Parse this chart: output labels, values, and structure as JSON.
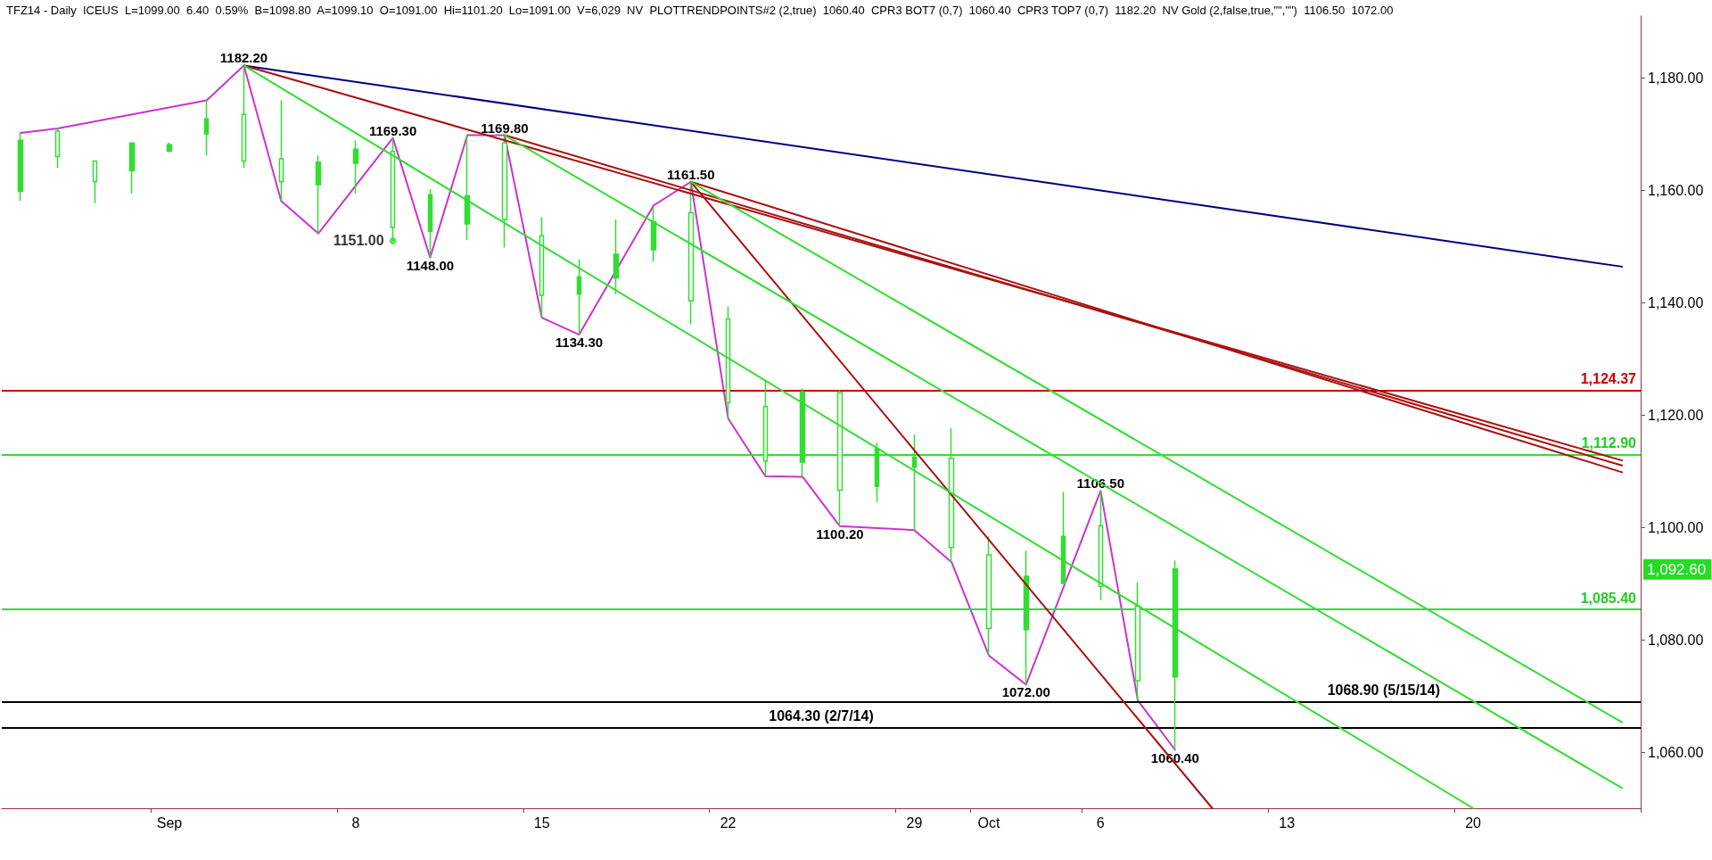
{
  "chart_data": {
    "type": "candlestick",
    "title": "TFZ14 - Daily  ICEUS  L=1099.00  6.40  0.59%  B=1098.80  A=1099.10  O=1091.00  Hi=1101.20  Lo=1091.00  V=6,029  NV  PLOTTRENDPOINTS#2 (2,true)  1060.40  CPR3 BOT7 (0,7)  1060.40  CPR3 TOP7 (0,7)  1182.20  NV Gold (2,false,true,\"\",\"\")  1106.50  1072.00",
    "categories": [
      null,
      null,
      null,
      null,
      "Sep",
      null,
      null,
      null,
      null,
      "8",
      null,
      null,
      null,
      null,
      "15",
      null,
      null,
      null,
      null,
      "22",
      null,
      null,
      null,
      null,
      "29",
      null,
      "Oct",
      null,
      null,
      "6",
      null,
      null,
      null,
      null,
      "13",
      null,
      null,
      null,
      null,
      "20",
      null,
      null,
      null,
      null
    ],
    "color": "#33dd33",
    "ohlc": [
      [
        1159.8,
        1170.2,
        1158.1,
        1168.9
      ],
      [
        1170.5,
        1171.0,
        1164.0,
        1166.0
      ],
      [
        1165.2,
        1165.2,
        1157.7,
        1161.5
      ],
      [
        1163.5,
        1168.5,
        1159.4,
        1168.4
      ],
      [
        1167.0,
        1168.5,
        1166.7,
        1168.1
      ],
      [
        1170.0,
        1176.0,
        1166.2,
        1172.7
      ],
      [
        1173.5,
        1182.2,
        1164.0,
        1165.2
      ],
      [
        1165.6,
        1176.0,
        1158.1,
        1161.5
      ],
      [
        1161.0,
        1166.2,
        1152.3,
        1165.0
      ],
      [
        1164.8,
        1168.9,
        1159.4,
        1167.3
      ],
      [
        1166.9,
        1169.3,
        1151.0,
        1153.4
      ],
      [
        1152.7,
        1160.2,
        1148.0,
        1159.2
      ],
      [
        1154.0,
        1169.8,
        1151.1,
        1159.0
      ],
      [
        1168.4,
        1169.8,
        1149.8,
        1154.8
      ],
      [
        1151.9,
        1155.2,
        1137.3,
        1141.3
      ],
      [
        1141.5,
        1147.7,
        1134.3,
        1144.6
      ],
      [
        1144.4,
        1154.8,
        1141.5,
        1148.6
      ],
      [
        1149.4,
        1156.9,
        1147.3,
        1154.4
      ],
      [
        1156.0,
        1161.5,
        1136.1,
        1140.3
      ],
      [
        1137.1,
        1139.3,
        1119.4,
        1122.2
      ],
      [
        1121.5,
        1126.1,
        1109.1,
        1111.8
      ],
      [
        1111.6,
        1124.7,
        1109.0,
        1124.1
      ],
      [
        1124.0,
        1124.4,
        1100.2,
        1106.6
      ],
      [
        1107.3,
        1115.1,
        1104.5,
        1114.0
      ],
      [
        1110.7,
        1116.5,
        1099.5,
        1112.5
      ],
      [
        1112.3,
        1117.6,
        1093.8,
        1096.4
      ],
      [
        1095.1,
        1098.4,
        1077.2,
        1082.0
      ],
      [
        1081.8,
        1095.8,
        1072.0,
        1091.3
      ],
      [
        1090.0,
        1106.3,
        1090.0,
        1098.4
      ],
      [
        1100.3,
        1106.5,
        1087.0,
        1089.5
      ],
      [
        1086.0,
        1090.2,
        1069.2,
        1072.7
      ],
      [
        1073.4,
        1094.1,
        1060.4,
        1092.6
      ],
      null,
      null,
      null,
      null,
      null,
      null,
      null,
      null,
      null,
      null,
      null,
      null
    ],
    "series": [
      {
        "type": "line",
        "color": "#cc33cc",
        "values": [
          1170.2,
          1171.0,
          null,
          null,
          null,
          1176.0,
          1182.2,
          1158.1,
          1152.3,
          null,
          1169.3,
          1148.0,
          1169.8,
          1169.8,
          1137.3,
          1134.3,
          null,
          1157.3,
          1161.5,
          1119.4,
          1109.1,
          1109.0,
          1100.2,
          null,
          1099.5,
          1093.8,
          1077.2,
          1072.0,
          null,
          1106.5,
          1069.2,
          1060.4,
          null,
          null,
          null,
          null,
          null,
          null,
          null,
          null,
          null,
          null,
          null,
          null
        ],
        "value_labels": [
          null,
          null,
          null,
          null,
          null,
          null,
          "1182.20",
          null,
          null,
          null,
          "1169.30",
          "1148.00",
          null,
          "1169.80",
          null,
          "1134.30",
          null,
          null,
          "1161.50",
          null,
          null,
          null,
          "1100.20",
          null,
          null,
          null,
          null,
          "1072.00",
          null,
          "1106.50",
          null,
          "1060.40",
          null,
          null,
          null,
          null,
          null,
          null,
          null,
          null,
          null,
          null,
          null,
          null
        ]
      },
      {
        "type": "scatter",
        "color": "#33dd33",
        "marker": "circle",
        "values": [
          null,
          null,
          null,
          null,
          null,
          null,
          null,
          null,
          null,
          null,
          1151.0,
          null,
          null,
          null,
          null,
          null,
          null,
          null,
          null,
          null,
          null,
          null,
          null,
          null,
          null,
          null,
          null,
          null,
          null,
          null,
          null,
          null,
          null,
          null,
          null,
          null,
          null,
          null,
          null,
          null,
          null,
          null,
          null,
          null
        ],
        "value_labels": [
          null,
          null,
          null,
          null,
          null,
          null,
          null,
          null,
          null,
          null,
          "1151.00",
          null,
          null,
          null,
          null,
          null,
          null,
          null,
          null,
          null,
          null,
          null,
          null,
          null,
          null,
          null,
          null,
          null,
          null,
          null,
          null,
          null,
          null,
          null,
          null,
          null,
          null,
          null,
          null,
          null,
          null,
          null,
          null,
          null
        ]
      },
      {
        "type": "line",
        "color": "#000080",
        "values": [
          null,
          null,
          null,
          null,
          null,
          null,
          1182.2,
          null,
          null,
          null,
          null,
          null,
          null,
          null,
          null,
          null,
          null,
          null,
          null,
          null,
          null,
          null,
          null,
          null,
          null,
          null,
          null,
          null,
          null,
          null,
          null,
          null,
          null,
          null,
          null,
          null,
          null,
          null,
          null,
          null,
          null,
          null,
          null,
          1146.4
        ]
      },
      {
        "type": "line",
        "color": "#aa1111",
        "values": [
          null,
          null,
          null,
          null,
          null,
          null,
          1182.2,
          null,
          null,
          null,
          null,
          null,
          null,
          null,
          null,
          null,
          null,
          null,
          null,
          null,
          null,
          null,
          null,
          null,
          null,
          null,
          null,
          null,
          null,
          null,
          null,
          null,
          null,
          null,
          null,
          null,
          null,
          null,
          null,
          null,
          null,
          null,
          null,
          1111.9
        ]
      },
      {
        "type": "line",
        "color": "#aa1111",
        "values": [
          null,
          null,
          null,
          null,
          null,
          null,
          null,
          null,
          null,
          null,
          null,
          null,
          null,
          1169.8,
          null,
          null,
          null,
          null,
          null,
          null,
          null,
          null,
          null,
          null,
          null,
          null,
          null,
          null,
          null,
          null,
          null,
          null,
          null,
          null,
          null,
          null,
          null,
          null,
          null,
          null,
          null,
          null,
          null,
          1111.0
        ]
      },
      {
        "type": "line",
        "color": "#aa1111",
        "values": [
          null,
          null,
          null,
          null,
          null,
          null,
          null,
          null,
          null,
          null,
          null,
          null,
          null,
          null,
          null,
          null,
          null,
          null,
          1161.5,
          null,
          null,
          null,
          null,
          null,
          null,
          null,
          null,
          null,
          null,
          null,
          null,
          null,
          null,
          null,
          null,
          null,
          null,
          null,
          null,
          null,
          null,
          null,
          null,
          1109.8
        ]
      },
      {
        "type": "line",
        "color": "#aa1111",
        "values": [
          null,
          null,
          null,
          null,
          null,
          null,
          null,
          null,
          null,
          null,
          null,
          null,
          null,
          null,
          null,
          null,
          null,
          null,
          1161.5,
          null,
          null,
          null,
          null,
          null,
          null,
          null,
          null,
          null,
          null,
          null,
          null,
          null,
          1050,
          null,
          null,
          null,
          null,
          null,
          null,
          null,
          null,
          null,
          null,
          null
        ]
      },
      {
        "type": "line",
        "color": "#33dd33",
        "values": [
          null,
          null,
          null,
          null,
          null,
          null,
          1182.2,
          null,
          null,
          null,
          null,
          null,
          null,
          null,
          null,
          null,
          null,
          null,
          null,
          null,
          null,
          null,
          null,
          null,
          null,
          null,
          null,
          null,
          null,
          null,
          null,
          null,
          null,
          null,
          null,
          null,
          null,
          null,
          null,
          1050,
          null,
          null,
          null,
          null
        ]
      },
      {
        "type": "line",
        "color": "#33dd33",
        "values": [
          null,
          null,
          null,
          null,
          null,
          null,
          null,
          null,
          null,
          null,
          null,
          null,
          null,
          1169.8,
          null,
          null,
          null,
          null,
          null,
          null,
          null,
          null,
          null,
          null,
          null,
          null,
          null,
          null,
          null,
          null,
          null,
          null,
          null,
          null,
          null,
          null,
          null,
          null,
          null,
          null,
          null,
          null,
          null,
          1053.6
        ]
      },
      {
        "type": "line",
        "color": "#33dd33",
        "values": [
          null,
          null,
          null,
          null,
          null,
          null,
          null,
          null,
          null,
          null,
          null,
          null,
          null,
          null,
          null,
          null,
          null,
          null,
          1161.5,
          null,
          null,
          null,
          null,
          null,
          null,
          null,
          null,
          null,
          null,
          null,
          null,
          null,
          null,
          null,
          null,
          null,
          null,
          null,
          null,
          null,
          null,
          null,
          null,
          1065.3
        ]
      }
    ],
    "ref_lines": [
      {
        "axis": "y",
        "value": 1124.37,
        "label": "1,124.37",
        "color": "#cc0000"
      },
      {
        "axis": "y",
        "value": 1112.9,
        "label": "1,112.90",
        "color": "#33dd33"
      },
      {
        "axis": "y",
        "value": 1085.4,
        "label": "1,085.40",
        "color": "#33dd33"
      },
      {
        "axis": "y",
        "value": 1068.9,
        "label": "1068.90 (5/15/14)",
        "color": "#000000"
      },
      {
        "axis": "y",
        "value": 1064.3,
        "label": "1064.30 (2/7/14)",
        "color": "#000000"
      }
    ],
    "annotations": [
      "1,092.60"
    ],
    "ylim": [
      1050,
      1191
    ],
    "yticks": [
      {
        "value": 1060,
        "label": "1,060.00"
      },
      {
        "value": 1080,
        "label": "1,080.00"
      },
      {
        "value": 1100,
        "label": "1,100.00"
      },
      {
        "value": 1120,
        "label": "1,120.00"
      },
      {
        "value": 1140,
        "label": "1,140.00"
      },
      {
        "value": 1160,
        "label": "1,160.00"
      },
      {
        "value": 1180,
        "label": "1,180.00"
      }
    ],
    "grid": false,
    "legend": false,
    "marker": "none",
    "line_style": "solid"
  }
}
